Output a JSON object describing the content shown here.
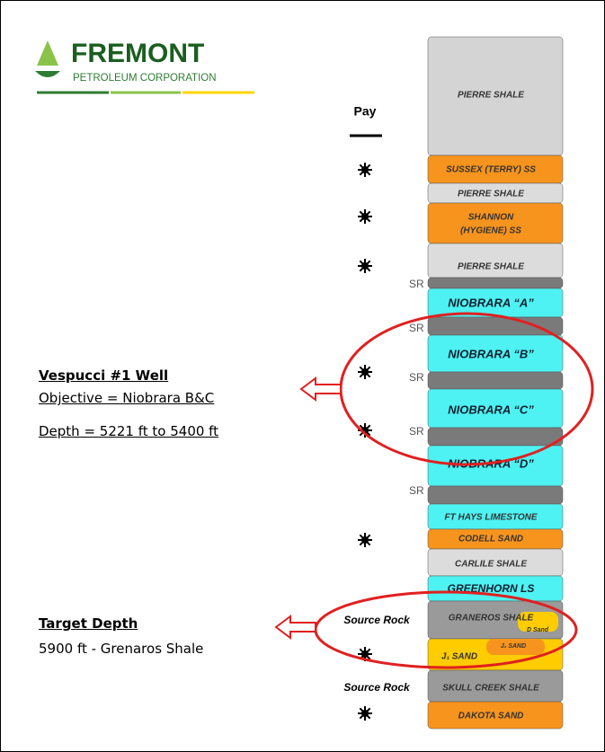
{
  "logo": {
    "name": "FREMONT",
    "subtitle": "PETROLEUM CORPORATION"
  },
  "column": {
    "pay_label": "Pay",
    "layers": [
      "PIERRE SHALE",
      "SUSSEX (TERRY) SS",
      "PIERRE SHALE",
      "SHANNON",
      "(HYGIENE) SS",
      "PIERRE SHALE",
      "NIOBRARA “A”",
      "NIOBRARA “B”",
      "NIOBRARA “C”",
      "NIOBRARA “D”",
      "FT HAYS LIMESTONE",
      "CODELL SAND",
      "CARLILE SHALE",
      "GREENHORN LS",
      "GRANEROS SHALE",
      "D Sand",
      "J₂ SAND",
      "J₁ SAND",
      "SKULL CREEK SHALE",
      "DAKOTA SAND"
    ],
    "sr_label": "SR",
    "source_rock_label": "Source Rock"
  },
  "well": {
    "title": "Vespucci #1 Well",
    "objective": "Objective = Niobrara B&C",
    "depth": "Depth = 5221 ft to 5400 ft"
  },
  "target": {
    "title": "Target Depth",
    "text": "5900 ft - Grenaros Shale"
  }
}
